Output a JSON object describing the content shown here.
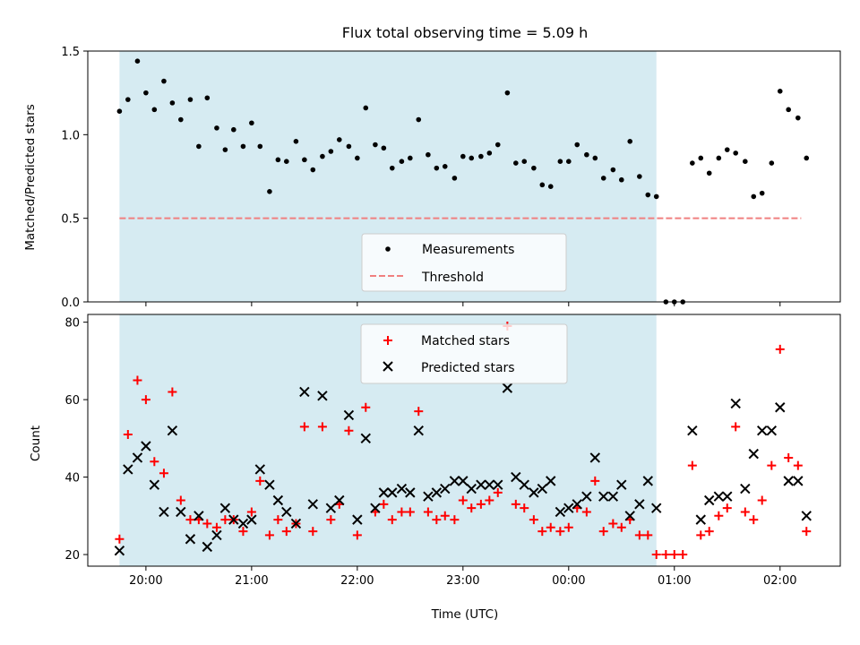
{
  "colors": {
    "shade": "#add8e6",
    "measurement": "#000000",
    "threshold": "#f08080",
    "matched": "#ff0000",
    "predicted": "#000000"
  },
  "chart_data": [
    {
      "type": "scatter",
      "title": "Flux total observing time = 5.09 h",
      "xlabel": "",
      "ylabel": "Matched/Predicted stars",
      "ylim": [
        0,
        1.5
      ],
      "yticks": [
        "0.0",
        "0.5",
        "1.0",
        "1.5"
      ],
      "xticks": [
        "20:00",
        "21:00",
        "22:00",
        "23:00",
        "00:00",
        "01:00",
        "02:00"
      ],
      "xtick_values": [
        20,
        21,
        22,
        23,
        24,
        25,
        26
      ],
      "shaded_region": [
        19.75,
        24.83
      ],
      "threshold": {
        "name": "Threshold",
        "value": 0.5,
        "x_range": [
          19.75,
          26.2
        ]
      },
      "legend": [
        "Measurements",
        "Threshold"
      ],
      "series": [
        {
          "name": "Measurements",
          "x": [
            19.75,
            19.83,
            19.92,
            20.0,
            20.08,
            20.17,
            20.25,
            20.33,
            20.42,
            20.5,
            20.58,
            20.67,
            20.75,
            20.83,
            20.92,
            21.0,
            21.08,
            21.17,
            21.25,
            21.33,
            21.42,
            21.5,
            21.58,
            21.67,
            21.75,
            21.83,
            21.92,
            22.0,
            22.08,
            22.17,
            22.25,
            22.33,
            22.42,
            22.5,
            22.58,
            22.67,
            22.75,
            22.83,
            22.92,
            23.0,
            23.08,
            23.17,
            23.25,
            23.33,
            23.42,
            23.5,
            23.58,
            23.67,
            23.75,
            23.83,
            23.92,
            24.0,
            24.08,
            24.17,
            24.25,
            24.33,
            24.42,
            24.5,
            24.58,
            24.67,
            24.75,
            24.83,
            24.92,
            25.0,
            25.08,
            25.17,
            25.25,
            25.33,
            25.42,
            25.5,
            25.58,
            25.67,
            25.75,
            25.83,
            25.92,
            26.0,
            26.08,
            26.17,
            26.25
          ],
          "y": [
            1.14,
            1.21,
            1.44,
            1.25,
            1.15,
            1.32,
            1.19,
            1.09,
            1.21,
            0.93,
            1.22,
            1.04,
            0.91,
            1.03,
            0.93,
            1.07,
            0.93,
            0.66,
            0.85,
            0.84,
            0.96,
            0.85,
            0.79,
            0.87,
            0.9,
            0.97,
            0.93,
            0.86,
            1.16,
            0.94,
            0.92,
            0.8,
            0.84,
            0.86,
            1.09,
            0.88,
            0.8,
            0.81,
            0.74,
            0.87,
            0.86,
            0.87,
            0.89,
            0.94,
            1.25,
            0.83,
            0.84,
            0.8,
            0.7,
            0.69,
            0.84,
            0.84,
            0.94,
            0.88,
            0.86,
            0.74,
            0.79,
            0.73,
            0.96,
            0.75,
            0.64,
            0.63,
            0.0,
            0.0,
            0.0,
            0.83,
            0.86,
            0.77,
            0.86,
            0.91,
            0.89,
            0.84,
            0.63,
            0.65,
            0.83,
            1.26,
            1.15,
            1.1,
            0.86
          ]
        }
      ]
    },
    {
      "type": "scatter",
      "title": "",
      "xlabel": "Time (UTC)",
      "ylabel": "Count",
      "ylim": [
        17,
        82
      ],
      "yticks": [
        "20",
        "40",
        "60",
        "80"
      ],
      "ytick_values": [
        20,
        40,
        60,
        80
      ],
      "xticks": [
        "20:00",
        "21:00",
        "22:00",
        "23:00",
        "00:00",
        "01:00",
        "02:00"
      ],
      "xtick_values": [
        20,
        21,
        22,
        23,
        24,
        25,
        26
      ],
      "shaded_region": [
        19.75,
        24.83
      ],
      "legend": [
        "Matched stars",
        "Predicted stars"
      ],
      "series": [
        {
          "name": "Matched stars",
          "x": [
            19.75,
            19.83,
            19.92,
            20.0,
            20.08,
            20.17,
            20.25,
            20.33,
            20.42,
            20.5,
            20.58,
            20.67,
            20.75,
            20.83,
            20.92,
            21.0,
            21.08,
            21.17,
            21.25,
            21.33,
            21.42,
            21.5,
            21.58,
            21.67,
            21.75,
            21.83,
            21.92,
            22.0,
            22.08,
            22.17,
            22.25,
            22.33,
            22.42,
            22.5,
            22.58,
            22.67,
            22.75,
            22.83,
            22.92,
            23.0,
            23.08,
            23.17,
            23.25,
            23.33,
            23.42,
            23.5,
            23.58,
            23.67,
            23.75,
            23.83,
            23.92,
            24.0,
            24.08,
            24.17,
            24.25,
            24.33,
            24.42,
            24.5,
            24.58,
            24.67,
            24.75,
            24.83,
            24.92,
            25.0,
            25.08,
            25.17,
            25.25,
            25.33,
            25.42,
            25.5,
            25.58,
            25.67,
            25.75,
            25.83,
            25.92,
            26.0,
            26.08,
            26.17,
            26.25
          ],
          "y": [
            24,
            51,
            65,
            60,
            44,
            41,
            62,
            34,
            29,
            29,
            28,
            27,
            29,
            29,
            26,
            31,
            39,
            25,
            29,
            26,
            28,
            53,
            26,
            53,
            29,
            33,
            52,
            25,
            58,
            31,
            33,
            29,
            31,
            31,
            57,
            31,
            29,
            30,
            29,
            34,
            32,
            33,
            34,
            36,
            79,
            33,
            32,
            29,
            26,
            27,
            26,
            27,
            32,
            31,
            39,
            26,
            28,
            27,
            29,
            25,
            25,
            20,
            20,
            20,
            20,
            43,
            25,
            26,
            30,
            32,
            53,
            31,
            29,
            34,
            43,
            73,
            45,
            43,
            26
          ]
        },
        {
          "name": "Predicted stars",
          "x": [
            19.75,
            19.83,
            19.92,
            20.0,
            20.08,
            20.17,
            20.25,
            20.33,
            20.42,
            20.5,
            20.58,
            20.67,
            20.75,
            20.83,
            20.92,
            21.0,
            21.08,
            21.17,
            21.25,
            21.33,
            21.42,
            21.5,
            21.58,
            21.67,
            21.75,
            21.83,
            21.92,
            22.0,
            22.08,
            22.17,
            22.25,
            22.33,
            22.42,
            22.5,
            22.58,
            22.67,
            22.75,
            22.83,
            22.92,
            23.0,
            23.08,
            23.17,
            23.25,
            23.33,
            23.42,
            23.5,
            23.58,
            23.67,
            23.75,
            23.83,
            23.92,
            24.0,
            24.08,
            24.17,
            24.25,
            24.33,
            24.42,
            24.5,
            24.58,
            24.67,
            24.75,
            24.83,
            25.17,
            25.25,
            25.33,
            25.42,
            25.5,
            25.58,
            25.67,
            25.75,
            25.83,
            25.92,
            26.0,
            26.08,
            26.17,
            26.25
          ],
          "y": [
            21,
            42,
            45,
            48,
            38,
            31,
            52,
            31,
            24,
            30,
            22,
            25,
            32,
            29,
            28,
            29,
            42,
            38,
            34,
            31,
            28,
            62,
            33,
            61,
            32,
            34,
            56,
            29,
            50,
            32,
            36,
            36,
            37,
            36,
            52,
            35,
            36,
            37,
            39,
            39,
            37,
            38,
            38,
            38,
            63,
            40,
            38,
            36,
            37,
            39,
            31,
            32,
            33,
            35,
            45,
            35,
            35,
            38,
            30,
            33,
            39,
            32,
            52,
            29,
            34,
            35,
            35,
            59,
            37,
            46,
            52,
            52,
            58,
            39,
            39,
            30
          ]
        }
      ]
    }
  ]
}
